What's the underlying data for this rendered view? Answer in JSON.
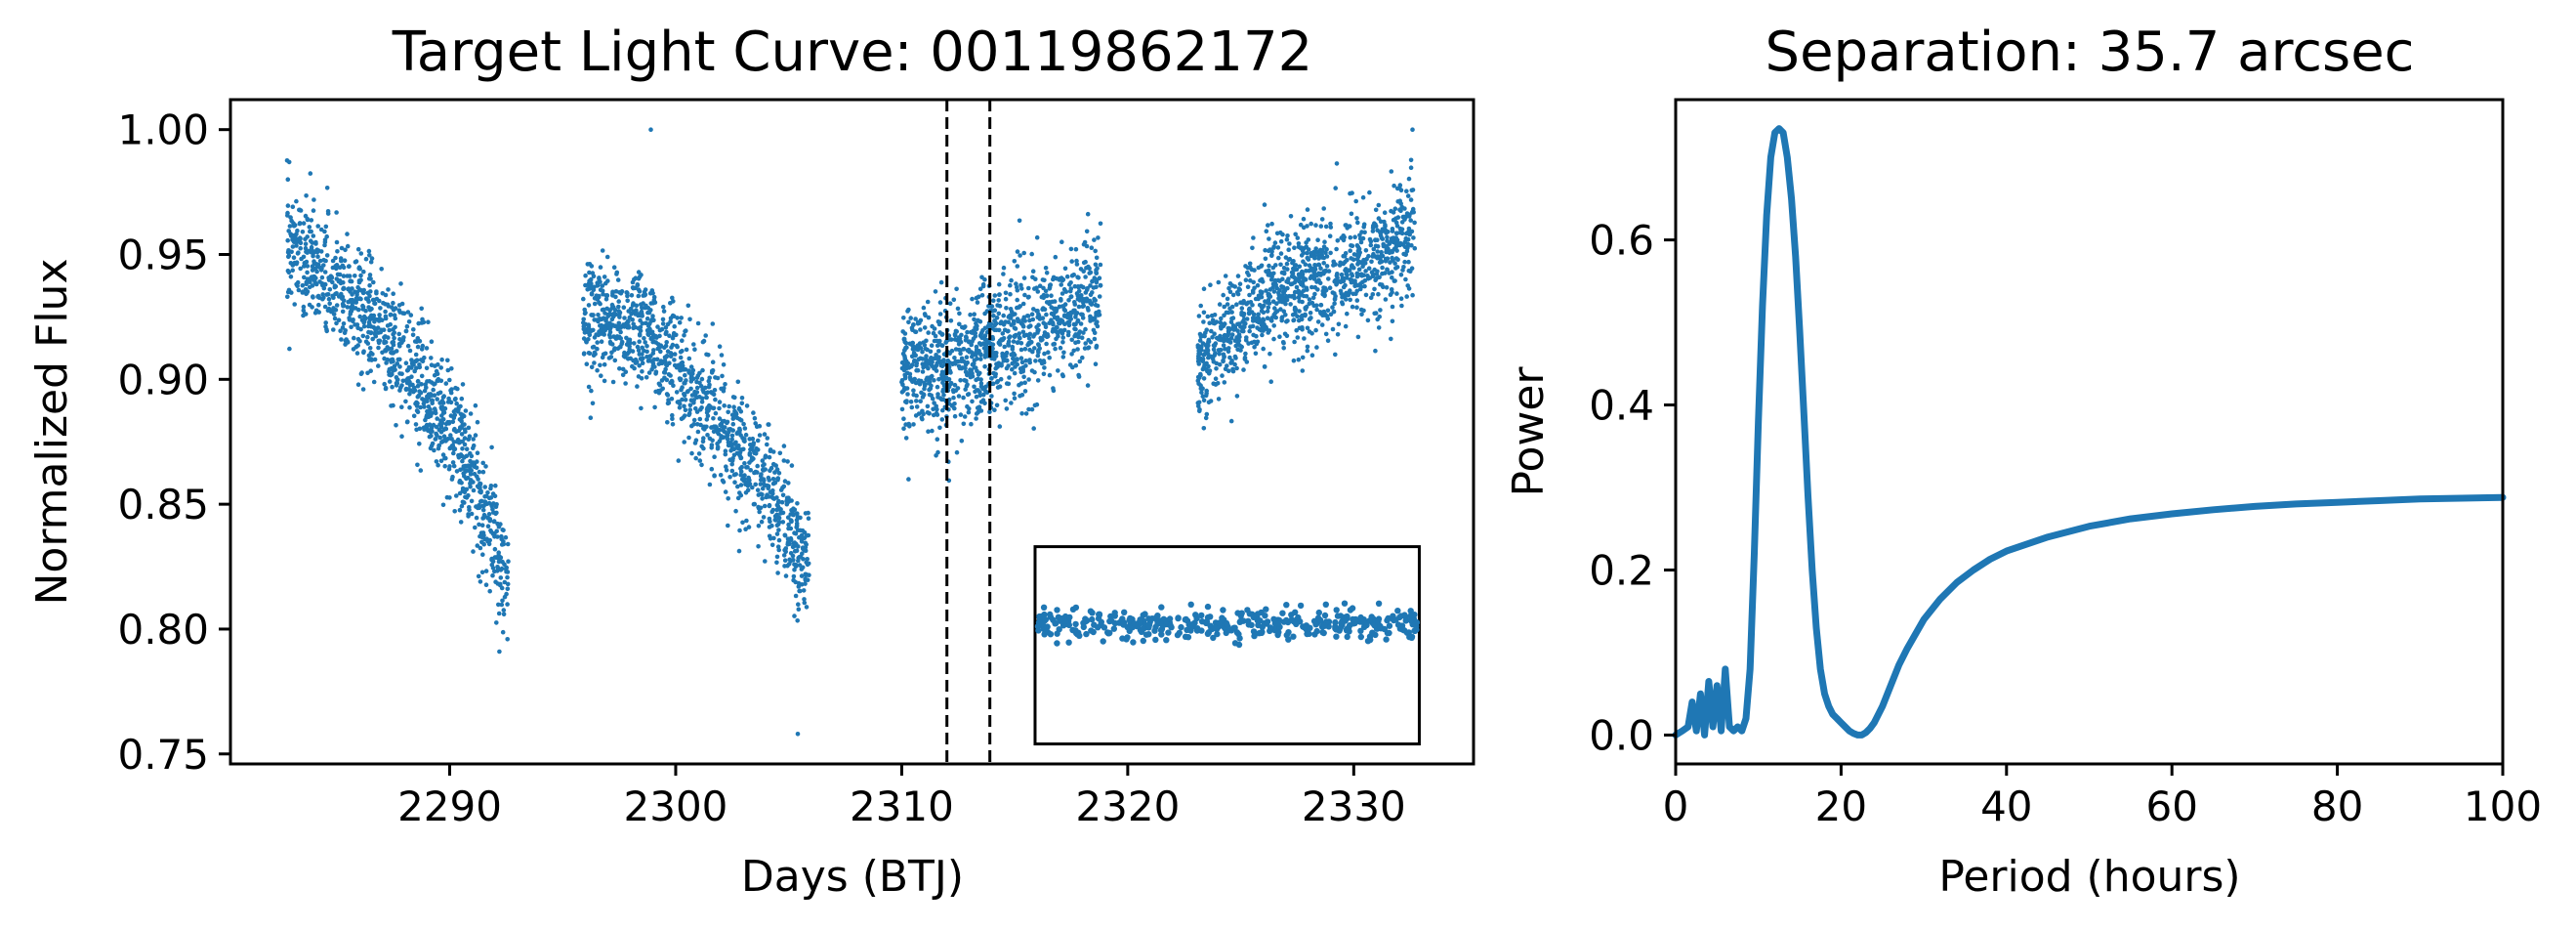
{
  "chart_data": [
    {
      "type": "scatter",
      "title": "Target Light Curve: 00119862172",
      "xlabel": "Days (BTJ)",
      "ylabel": "Normalized Flux",
      "xlim": [
        2280.3,
        2335.3
      ],
      "ylim": [
        0.746,
        1.012
      ],
      "xticks": [
        2290,
        2300,
        2310,
        2320,
        2330
      ],
      "xtick_labels": [
        "2290",
        "2300",
        "2310",
        "2320",
        "2330"
      ],
      "yticks": [
        0.75,
        0.8,
        0.85,
        0.9,
        0.95,
        1.0
      ],
      "ytick_labels": [
        "0.75",
        "0.80",
        "0.85",
        "0.90",
        "0.95",
        "1.00"
      ],
      "color": "#1f77b4",
      "segments": [
        {
          "x_start": 2282.8,
          "x_end": 2292.6,
          "trend": [
            [
              2282.8,
              0.955
            ],
            [
              2285.0,
              0.935
            ],
            [
              2287.0,
              0.918
            ],
            [
              2289.0,
              0.895
            ],
            [
              2290.5,
              0.872
            ],
            [
              2292.6,
              0.82
            ]
          ],
          "scatter": 0.012
        },
        {
          "x_start": 2295.9,
          "x_end": 2305.9,
          "trend": [
            [
              2295.9,
              0.925
            ],
            [
              2298.0,
              0.922
            ],
            [
              2300.0,
              0.905
            ],
            [
              2302.0,
              0.88
            ],
            [
              2304.0,
              0.858
            ],
            [
              2305.9,
              0.82
            ]
          ],
          "scatter": 0.012
        },
        {
          "x_start": 2310.0,
          "x_end": 2318.8,
          "trend": [
            [
              2310.0,
              0.905
            ],
            [
              2312.0,
              0.903
            ],
            [
              2314.0,
              0.913
            ],
            [
              2316.0,
              0.92
            ],
            [
              2318.8,
              0.935
            ]
          ],
          "scatter": 0.013
        },
        {
          "x_start": 2323.1,
          "x_end": 2332.7,
          "trend": [
            [
              2323.1,
              0.905
            ],
            [
              2325.0,
              0.925
            ],
            [
              2327.0,
              0.935
            ],
            [
              2329.0,
              0.94
            ],
            [
              2331.0,
              0.948
            ],
            [
              2332.7,
              0.962
            ]
          ],
          "scatter": 0.012
        }
      ],
      "outliers": [
        [
          2282.9,
          0.987
        ],
        [
          2298.9,
          1.0
        ],
        [
          2305.4,
          0.758
        ],
        [
          2292.2,
          0.791
        ],
        [
          2332.6,
          1.0
        ],
        [
          2310.3,
          0.86
        ]
      ],
      "vlines": [
        2312.0,
        2313.9
      ],
      "vline_style": "dashed",
      "inset": {
        "x_range": [
          2315.9,
          2332.9
        ],
        "y_range": [
          0.754,
          0.833
        ],
        "level": 0.802,
        "scatter": 0.003
      }
    },
    {
      "type": "line",
      "title": "Separation: 35.7 arcsec",
      "xlabel": "Period (hours)",
      "ylabel": "Power",
      "xlim": [
        0,
        100
      ],
      "ylim": [
        -0.035,
        0.77
      ],
      "xticks": [
        0,
        20,
        40,
        60,
        80,
        100
      ],
      "xtick_labels": [
        "0",
        "20",
        "40",
        "60",
        "80",
        "100"
      ],
      "yticks": [
        0.0,
        0.2,
        0.4,
        0.6
      ],
      "ytick_labels": [
        "0.0",
        "0.2",
        "0.4",
        "0.6"
      ],
      "color": "#1f77b4",
      "series": [
        {
          "x": [
            0,
            0.8,
            1.5,
            2.0,
            2.5,
            3.0,
            3.5,
            4.0,
            4.5,
            5.0,
            5.5,
            6.0,
            6.5,
            7.0,
            7.5,
            8.0,
            8.5,
            9.0,
            9.5,
            10.0,
            10.5,
            11.0,
            11.5,
            12.0,
            12.5,
            13.0,
            13.5,
            14.0,
            14.5,
            15.0,
            15.5,
            16.0,
            16.5,
            17.0,
            17.5,
            18.0,
            18.5,
            19.0,
            19.5,
            20.0,
            20.5,
            21.0,
            21.5,
            22.0,
            22.5,
            23.0,
            23.5,
            24.0,
            25.0,
            26.0,
            27.0,
            28.0,
            30.0,
            32.0,
            34.0,
            36.0,
            38.0,
            40.0,
            45.0,
            50.0,
            55.0,
            60.0,
            65.0,
            70.0,
            75.0,
            80.0,
            85.0,
            90.0,
            95.0,
            100.0
          ],
          "y": [
            0.0,
            0.005,
            0.01,
            0.04,
            0.005,
            0.05,
            0.0,
            0.065,
            0.01,
            0.06,
            0.005,
            0.08,
            0.01,
            0.005,
            0.01,
            0.005,
            0.02,
            0.08,
            0.22,
            0.38,
            0.52,
            0.63,
            0.7,
            0.73,
            0.735,
            0.73,
            0.7,
            0.65,
            0.58,
            0.49,
            0.39,
            0.29,
            0.2,
            0.13,
            0.08,
            0.05,
            0.035,
            0.025,
            0.02,
            0.015,
            0.01,
            0.005,
            0.002,
            0.0,
            0.0,
            0.003,
            0.008,
            0.015,
            0.035,
            0.06,
            0.085,
            0.105,
            0.14,
            0.165,
            0.185,
            0.2,
            0.213,
            0.223,
            0.24,
            0.253,
            0.262,
            0.268,
            0.273,
            0.277,
            0.28,
            0.282,
            0.284,
            0.286,
            0.287,
            0.288
          ]
        }
      ]
    }
  ]
}
